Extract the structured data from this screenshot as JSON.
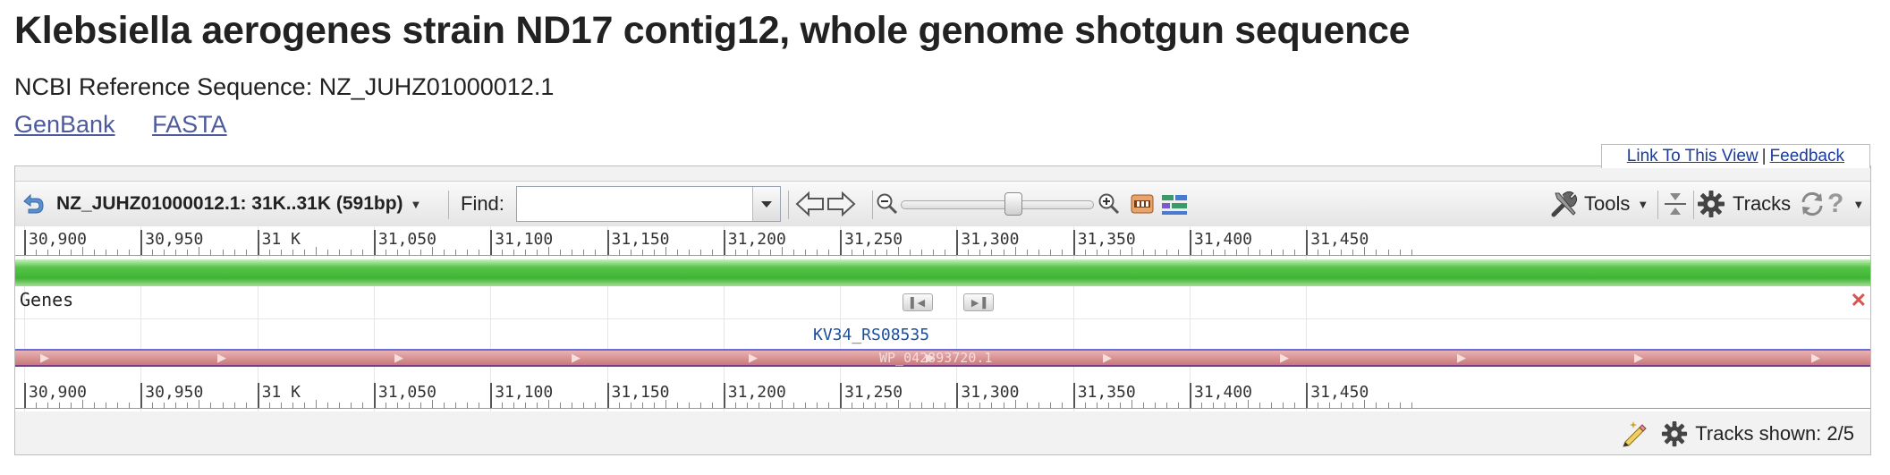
{
  "page": {
    "title": "Klebsiella aerogenes strain ND17 contig12, whole genome shotgun sequence",
    "refseq_label": "NCBI Reference Sequence: NZ_JUHZ01000012.1",
    "links": [
      "GenBank",
      "FASTA"
    ]
  },
  "viewer": {
    "top_links": {
      "link_to_view": "Link To This View",
      "separator": "|",
      "feedback": "Feedback"
    },
    "toolbar": {
      "sequence_range": "NZ_JUHZ01000012.1: 31K..31K (591bp)",
      "find_label": "Find:",
      "find_value": "",
      "tools_label": "Tools",
      "tracks_label": "Tracks"
    },
    "ruler_ticks": [
      "30,900",
      "30,950",
      "31 K",
      "31,050",
      "31,100",
      "31,150",
      "31,200",
      "31,250",
      "31,300",
      "31,350",
      "31,400",
      "31,450"
    ],
    "track": {
      "name": "Genes",
      "gene_label": "KV34_RS08535",
      "protein_label": "WP_042893720.1"
    },
    "footer": {
      "tracks_shown": "Tracks shown: 2/5"
    },
    "colors": {
      "sequence_bar": "#4cbe40",
      "protein_bar": "#d28e8e",
      "gene_label": "#1a4f9c",
      "link": "#1a3c9c",
      "close": "#d9534f"
    },
    "icons": [
      "back-arrow-icon",
      "chevron-down-icon",
      "pan-left-icon",
      "pan-right-icon",
      "zoom-out-icon",
      "zoom-in-icon",
      "sequence-view-icon",
      "alignment-icon",
      "tools-icon",
      "collapse-icon",
      "gear-icon",
      "refresh-icon",
      "help-icon",
      "pencil-icon",
      "close-icon"
    ]
  }
}
